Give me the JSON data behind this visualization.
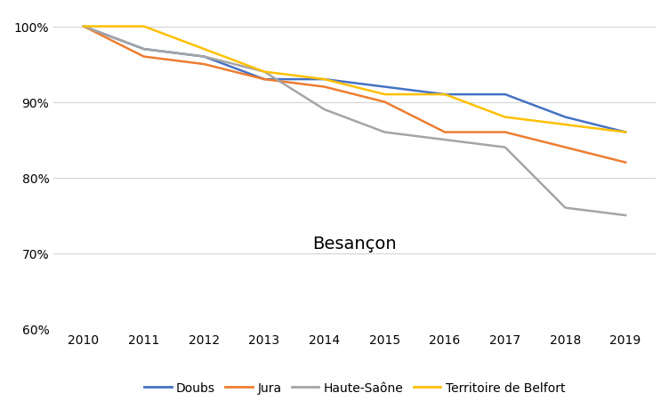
{
  "years": [
    2010,
    2011,
    2012,
    2013,
    2014,
    2015,
    2016,
    2017,
    2018,
    2019
  ],
  "series": {
    "Doubs": [
      100,
      97,
      96,
      93,
      93,
      92,
      91,
      91,
      88,
      86
    ],
    "Jura": [
      100,
      96,
      95,
      93,
      92,
      90,
      86,
      86,
      84,
      82
    ],
    "Haute-Saône": [
      100,
      97,
      96,
      94,
      89,
      86,
      85,
      84,
      76,
      75
    ],
    "Territoire de Belfort": [
      100,
      100,
      97,
      94,
      93,
      91,
      91,
      88,
      87,
      86
    ]
  },
  "colors": {
    "Doubs": "#4472C4",
    "Jura": "#ED7D31",
    "Haute-Saône": "#A5A5A5",
    "Territoire de Belfort": "#FFC000"
  },
  "title": "Besançon",
  "ylim": [
    60,
    102
  ],
  "yticks": [
    60,
    70,
    80,
    90,
    100
  ],
  "ytick_labels": [
    "60%",
    "70%",
    "80%",
    "90%",
    "100%"
  ],
  "grid_color": "#D3D3D3",
  "background_color": "#FFFFFF",
  "line_width": 1.8,
  "title_fontsize": 14,
  "tick_fontsize": 10,
  "legend_fontsize": 10
}
